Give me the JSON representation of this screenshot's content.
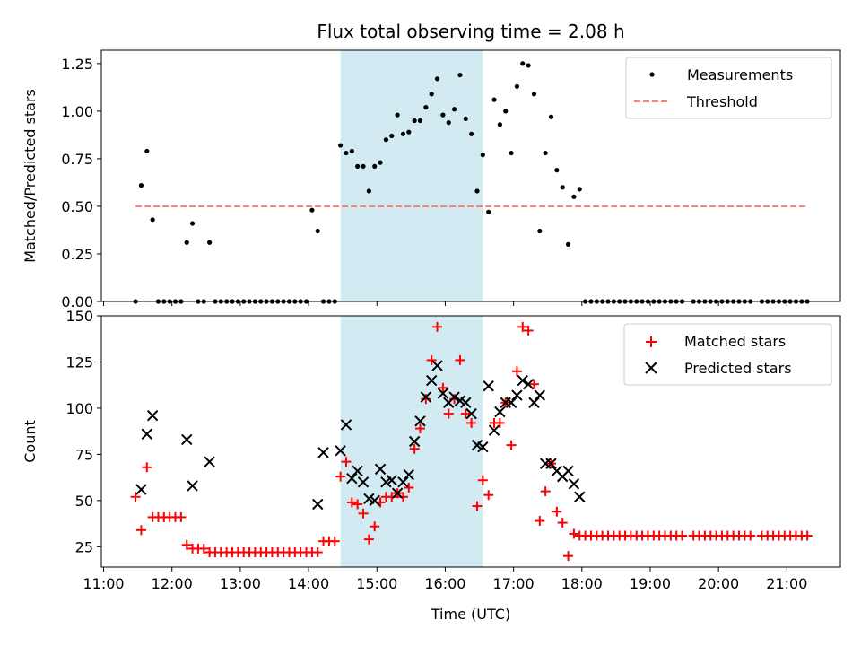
{
  "figure": {
    "title": "Flux total observing time = 2.08 h",
    "xlabel": "Time (UTC)",
    "x_ticks": [
      "11:00",
      "12:00",
      "13:00",
      "14:00",
      "15:00",
      "16:00",
      "17:00",
      "18:00",
      "19:00",
      "20:00",
      "21:00"
    ],
    "shaded_span": {
      "start": "14:28",
      "end": "16:33",
      "color": "#add8e6"
    }
  },
  "chart_data": [
    {
      "type": "scatter",
      "panel": "top",
      "ylabel": "Matched/Predicted stars",
      "ylim": [
        0,
        1.32
      ],
      "xlim": [
        "10:58",
        "21:47"
      ],
      "y_ticks": [
        "0.00",
        "0.25",
        "0.50",
        "0.75",
        "1.00",
        "1.25"
      ],
      "legend": {
        "placement": "top-right",
        "entries": [
          "Measurements",
          "Threshold"
        ]
      },
      "series": [
        {
          "name": "Measurements",
          "color": "#000000",
          "x": [
            "11:28",
            "11:33",
            "11:38",
            "11:43",
            "11:48",
            "11:53",
            "11:58",
            "12:03",
            "12:08",
            "12:13",
            "12:18",
            "12:23",
            "12:28",
            "12:33",
            "12:38",
            "12:43",
            "12:48",
            "12:53",
            "12:58",
            "13:03",
            "13:08",
            "13:13",
            "13:18",
            "13:23",
            "13:28",
            "13:33",
            "13:38",
            "13:43",
            "13:48",
            "13:53",
            "13:58",
            "14:03",
            "14:08",
            "14:13",
            "14:18",
            "14:23",
            "14:28",
            "14:33",
            "14:38",
            "14:43",
            "14:48",
            "14:53",
            "14:58",
            "15:03",
            "15:08",
            "15:13",
            "15:18",
            "15:23",
            "15:28",
            "15:33",
            "15:38",
            "15:43",
            "15:48",
            "15:53",
            "15:58",
            "16:03",
            "16:08",
            "16:13",
            "16:18",
            "16:23",
            "16:28",
            "16:33",
            "16:38",
            "16:43",
            "16:48",
            "16:53",
            "16:58",
            "17:03",
            "17:08",
            "17:13",
            "17:18",
            "17:23",
            "17:28",
            "17:33",
            "17:38",
            "17:43",
            "17:48",
            "17:53",
            "17:58",
            "18:03",
            "18:08",
            "18:13",
            "18:18",
            "18:23",
            "18:28",
            "18:33",
            "18:38",
            "18:43",
            "18:48",
            "18:53",
            "18:58",
            "19:03",
            "19:08",
            "19:13",
            "19:18",
            "19:23",
            "19:28",
            "19:38",
            "19:43",
            "19:48",
            "19:53",
            "19:58",
            "20:03",
            "20:08",
            "20:13",
            "20:18",
            "20:23",
            "20:28",
            "20:38",
            "20:43",
            "20:48",
            "20:53",
            "20:58",
            "21:03",
            "21:08",
            "21:13",
            "21:18"
          ],
          "y": [
            0.0,
            0.61,
            0.79,
            0.43,
            0.0,
            0.0,
            0.0,
            0.0,
            0.0,
            0.31,
            0.41,
            0.0,
            0.0,
            0.31,
            0.0,
            0.0,
            0.0,
            0.0,
            0.0,
            0.0,
            0.0,
            0.0,
            0.0,
            0.0,
            0.0,
            0.0,
            0.0,
            0.0,
            0.0,
            0.0,
            0.0,
            0.48,
            0.37,
            0.0,
            0.0,
            0.0,
            0.82,
            0.78,
            0.79,
            0.71,
            0.71,
            0.58,
            0.71,
            0.73,
            0.85,
            0.87,
            0.98,
            0.88,
            0.89,
            0.95,
            0.95,
            1.02,
            1.09,
            1.17,
            0.98,
            0.94,
            1.01,
            1.19,
            0.96,
            0.88,
            0.58,
            0.77,
            0.47,
            1.06,
            0.93,
            1.0,
            0.78,
            1.13,
            1.25,
            1.24,
            1.09,
            0.37,
            0.78,
            0.97,
            0.69,
            0.6,
            0.3,
            0.55,
            0.59,
            0.0,
            0.0,
            0.0,
            0.0,
            0.0,
            0.0,
            0.0,
            0.0,
            0.0,
            0.0,
            0.0,
            0.0,
            0.0,
            0.0,
            0.0,
            0.0,
            0.0,
            0.0,
            0.0,
            0.0,
            0.0,
            0.0,
            0.0,
            0.0,
            0.0,
            0.0,
            0.0,
            0.0,
            0.0,
            0.0,
            0.0,
            0.0,
            0.0,
            0.0,
            0.0,
            0.0,
            0.0,
            0.0
          ]
        },
        {
          "name": "Threshold",
          "color": "#ff7f7f",
          "style": "dashed",
          "x": [
            "11:28",
            "21:18"
          ],
          "y": [
            0.5,
            0.5
          ]
        }
      ]
    },
    {
      "type": "scatter",
      "panel": "bottom",
      "ylabel": "Count",
      "ylim": [
        14,
        150
      ],
      "xlim": [
        "10:58",
        "21:47"
      ],
      "y_ticks": [
        "25",
        "50",
        "75",
        "100",
        "125",
        "150"
      ],
      "legend": {
        "placement": "top-right",
        "entries": [
          "Matched stars",
          "Predicted stars"
        ]
      },
      "series": [
        {
          "name": "Matched stars",
          "color": "#ff0000",
          "marker": "plus",
          "x": [
            "11:28",
            "11:33",
            "11:38",
            "11:43",
            "11:48",
            "11:53",
            "11:58",
            "12:03",
            "12:08",
            "12:13",
            "12:18",
            "12:23",
            "12:28",
            "12:33",
            "12:38",
            "12:43",
            "12:48",
            "12:53",
            "12:58",
            "13:03",
            "13:08",
            "13:13",
            "13:18",
            "13:23",
            "13:28",
            "13:33",
            "13:38",
            "13:43",
            "13:48",
            "13:53",
            "13:58",
            "14:03",
            "14:08",
            "14:13",
            "14:18",
            "14:23",
            "14:28",
            "14:33",
            "14:38",
            "14:43",
            "14:48",
            "14:53",
            "14:58",
            "15:03",
            "15:08",
            "15:13",
            "15:18",
            "15:23",
            "15:28",
            "15:33",
            "15:38",
            "15:43",
            "15:48",
            "15:53",
            "15:58",
            "16:03",
            "16:08",
            "16:13",
            "16:18",
            "16:23",
            "16:28",
            "16:33",
            "16:38",
            "16:43",
            "16:48",
            "16:53",
            "16:58",
            "17:03",
            "17:08",
            "17:13",
            "17:18",
            "17:23",
            "17:28",
            "17:33",
            "17:38",
            "17:43",
            "17:48",
            "17:53",
            "17:58",
            "18:03",
            "18:08",
            "18:13",
            "18:18",
            "18:23",
            "18:28",
            "18:33",
            "18:38",
            "18:43",
            "18:48",
            "18:53",
            "18:58",
            "19:03",
            "19:08",
            "19:13",
            "19:18",
            "19:23",
            "19:28",
            "19:38",
            "19:43",
            "19:48",
            "19:53",
            "19:58",
            "20:03",
            "20:08",
            "20:13",
            "20:18",
            "20:23",
            "20:28",
            "20:38",
            "20:43",
            "20:48",
            "20:53",
            "20:58",
            "21:03",
            "21:08",
            "21:13",
            "21:18"
          ],
          "y": [
            52,
            34,
            68,
            41,
            41,
            41,
            41,
            41,
            41,
            26,
            24,
            24,
            24,
            22,
            22,
            22,
            22,
            22,
            22,
            22,
            22,
            22,
            22,
            22,
            22,
            22,
            22,
            22,
            22,
            22,
            22,
            22,
            22,
            28,
            28,
            28,
            63,
            71,
            49,
            48,
            43,
            29,
            36,
            49,
            52,
            52,
            54,
            52,
            57,
            78,
            89,
            105,
            126,
            144,
            111,
            97,
            105,
            126,
            97,
            92,
            47,
            61,
            53,
            92,
            92,
            103,
            80,
            120,
            144,
            142,
            113,
            39,
            55,
            70,
            44,
            38,
            20,
            32,
            31,
            31,
            31,
            31,
            31,
            31,
            31,
            31,
            31,
            31,
            31,
            31,
            31,
            31,
            31,
            31,
            31,
            31,
            31,
            31,
            31,
            31,
            31,
            31,
            31,
            31,
            31,
            31,
            31,
            31,
            31,
            31,
            31,
            31,
            31,
            31,
            31,
            31,
            31
          ]
        },
        {
          "name": "Predicted stars",
          "color": "#000000",
          "marker": "x",
          "x": [
            "11:33",
            "11:38",
            "11:43",
            "12:13",
            "12:18",
            "12:33",
            "14:08",
            "14:13",
            "14:28",
            "14:33",
            "14:38",
            "14:43",
            "14:48",
            "14:53",
            "14:58",
            "15:03",
            "15:08",
            "15:13",
            "15:18",
            "15:23",
            "15:28",
            "15:33",
            "15:38",
            "15:43",
            "15:48",
            "15:53",
            "15:58",
            "16:03",
            "16:08",
            "16:13",
            "16:18",
            "16:23",
            "16:28",
            "16:33",
            "16:38",
            "16:43",
            "16:48",
            "16:53",
            "16:58",
            "17:03",
            "17:08",
            "17:13",
            "17:18",
            "17:23",
            "17:28",
            "17:33",
            "17:38",
            "17:43",
            "17:48",
            "17:53",
            "17:58"
          ],
          "y": [
            56,
            86,
            96,
            83,
            58,
            71,
            48,
            76,
            77,
            91,
            62,
            66,
            60,
            51,
            50,
            67,
            60,
            61,
            54,
            60,
            64,
            82,
            93,
            106,
            115,
            123,
            108,
            103,
            106,
            104,
            103,
            97,
            80,
            79,
            112,
            88,
            98,
            103,
            103,
            107,
            115,
            113,
            103,
            107,
            70,
            70,
            66,
            63,
            66,
            59,
            52
          ]
        }
      ]
    }
  ]
}
